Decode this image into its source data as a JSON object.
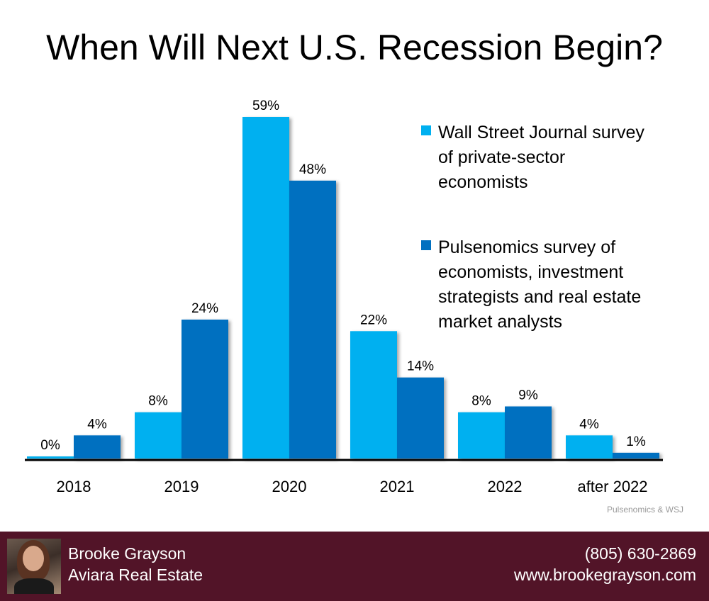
{
  "chart_data": {
    "type": "bar",
    "title": "When Will Next U.S. Recession Begin?",
    "categories": [
      "2018",
      "2019",
      "2020",
      "2021",
      "2022",
      "after 2022"
    ],
    "series": [
      {
        "name": "Wall Street Journal survey of private-sector economists",
        "values": [
          0,
          8,
          59,
          22,
          8,
          4
        ],
        "labels": [
          "0%",
          "8%",
          "59%",
          "22%",
          "8%",
          "4%"
        ],
        "color": "#00b0f0"
      },
      {
        "name": "Pulsenomics survey of economists, investment strategists and real estate market analysts",
        "values": [
          4,
          24,
          48,
          14,
          9,
          1
        ],
        "labels": [
          "4%",
          "24%",
          "48%",
          "14%",
          "9%",
          "1%"
        ],
        "color": "#0070c0"
      }
    ],
    "ylim": [
      0,
      59
    ],
    "grid": false,
    "legend": "top-right",
    "source": "Pulsenomics & WSJ"
  },
  "legend": {
    "lines": [
      [
        "Wall Street Journal survey",
        "of private-sector",
        "economists"
      ],
      [
        "Pulsenomics survey of",
        "economists, investment",
        "strategists and real estate",
        "market analysts"
      ]
    ]
  },
  "footer": {
    "name": "Brooke Grayson",
    "company": "Aviara Real Estate",
    "phone": "(805) 630-2869",
    "website": "www.brookegrayson.com",
    "background": "#521428"
  }
}
